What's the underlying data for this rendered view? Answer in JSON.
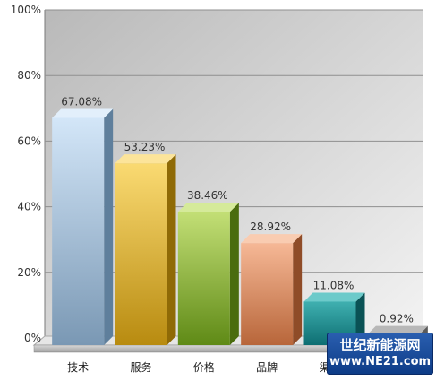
{
  "chart_data": {
    "type": "bar",
    "categories": [
      "技术",
      "服务",
      "价格",
      "品牌",
      "渠道",
      ""
    ],
    "values": [
      67.08,
      53.23,
      38.46,
      28.92,
      11.08,
      0.92
    ],
    "value_labels": [
      "67.08%",
      "53.23%",
      "38.46%",
      "28.92%",
      "11.08%",
      "0.92%"
    ],
    "y_ticks": [
      "0%",
      "20%",
      "40%",
      "60%",
      "80%",
      "100%"
    ],
    "ylim": [
      0,
      100
    ],
    "grid": true,
    "title": "",
    "xlabel": "",
    "ylabel": ""
  },
  "colors": {
    "bars": [
      {
        "front_top": "#d3e6f8",
        "front_bottom": "#7a98b4",
        "top": "#e2effb",
        "side": "#5f7f9c"
      },
      {
        "front_top": "#fada72",
        "front_bottom": "#b88b10",
        "top": "#fce49a",
        "side": "#8f6a06"
      },
      {
        "front_top": "#c3df76",
        "front_bottom": "#5f8a16",
        "top": "#d5ea9a",
        "side": "#4a6c0e"
      },
      {
        "front_top": "#f6b896",
        "front_bottom": "#b8663a",
        "top": "#f9ccb1",
        "side": "#8f4c28"
      },
      {
        "front_top": "#3fb0b0",
        "front_bottom": "#0d6e72",
        "top": "#6ccaca",
        "side": "#0a5255"
      },
      {
        "front_top": "#9a9a9a",
        "front_bottom": "#6e6e6e",
        "top": "#b8b8b8",
        "side": "#5a5a5a"
      }
    ],
    "plot_bg_left": "#bdbdbd",
    "plot_bg_right": "#f2f2f2",
    "gridline": "#8f8f8f"
  },
  "watermark": {
    "line1": "世纪新能源网",
    "line2": "www.NE21.com"
  }
}
